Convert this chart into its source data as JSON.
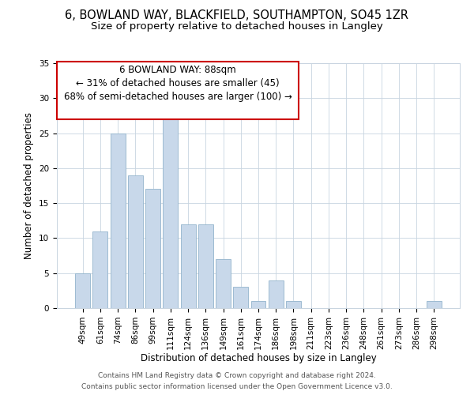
{
  "title": "6, BOWLAND WAY, BLACKFIELD, SOUTHAMPTON, SO45 1ZR",
  "subtitle": "Size of property relative to detached houses in Langley",
  "xlabel": "Distribution of detached houses by size in Langley",
  "ylabel": "Number of detached properties",
  "categories": [
    "49sqm",
    "61sqm",
    "74sqm",
    "86sqm",
    "99sqm",
    "111sqm",
    "124sqm",
    "136sqm",
    "149sqm",
    "161sqm",
    "174sqm",
    "186sqm",
    "198sqm",
    "211sqm",
    "223sqm",
    "236sqm",
    "248sqm",
    "261sqm",
    "273sqm",
    "286sqm",
    "298sqm"
  ],
  "values": [
    5,
    11,
    25,
    19,
    17,
    28,
    12,
    12,
    7,
    3,
    1,
    4,
    1,
    0,
    0,
    0,
    0,
    0,
    0,
    0,
    1
  ],
  "bar_color": "#c8d8ea",
  "bar_edge_color": "#92b4cc",
  "ylim": [
    0,
    35
  ],
  "yticks": [
    0,
    5,
    10,
    15,
    20,
    25,
    30,
    35
  ],
  "annotation_line1": "6 BOWLAND WAY: 88sqm",
  "annotation_line2": "← 31% of detached houses are smaller (45)",
  "annotation_line3": "68% of semi-detached houses are larger (100) →",
  "box_edge_color": "#cc0000",
  "box_face_color": "#ffffff",
  "footer_line1": "Contains HM Land Registry data © Crown copyright and database right 2024.",
  "footer_line2": "Contains public sector information licensed under the Open Government Licence v3.0.",
  "background_color": "#ffffff",
  "grid_color": "#c8d4e0",
  "title_fontsize": 10.5,
  "subtitle_fontsize": 9.5,
  "xlabel_fontsize": 8.5,
  "ylabel_fontsize": 8.5,
  "tick_fontsize": 7.5,
  "footer_fontsize": 6.5,
  "annotation_fontsize": 8.5
}
